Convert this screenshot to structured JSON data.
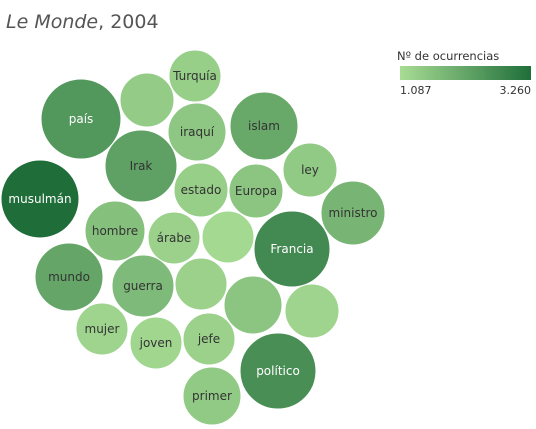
{
  "chart_data": {
    "type": "packed-bubble",
    "title": "Le Monde, 2004",
    "title_parts": {
      "italic": "Le Monde",
      "rest": ", 2004"
    },
    "legend": {
      "title": "Nº de ocurrencias",
      "min": 1087,
      "max": 3260,
      "min_label": "1.087",
      "max_label": "3.260",
      "color_low": "#a8dc94",
      "color_high": "#1f6e3a",
      "placement": "top-right"
    },
    "bubbles": [
      {
        "label": "musulmán",
        "value": 3260
      },
      {
        "label": "Francia",
        "value": 2700
      },
      {
        "label": "político",
        "value": 2600
      },
      {
        "label": "país",
        "value": 2450
      },
      {
        "label": "Irak",
        "value": 2250
      },
      {
        "label": "mundo",
        "value": 2150
      },
      {
        "label": "islam",
        "value": 2100
      },
      {
        "label": "ministro",
        "value": 1850
      },
      {
        "label": "guerra",
        "value": 1750
      },
      {
        "label": "hombre",
        "value": 1650
      },
      {
        "label": "Europa",
        "value": 1550
      },
      {
        "label": "iraquí",
        "value": 1500
      },
      {
        "label": "ley",
        "value": 1450
      },
      {
        "label": "primer",
        "value": 1450
      },
      {
        "label": "estado",
        "value": 1350
      },
      {
        "label": "Turquía",
        "value": 1350
      },
      {
        "label": "árabe",
        "value": 1300
      },
      {
        "label": "jefe",
        "value": 1300
      },
      {
        "label": "mujer",
        "value": 1250
      },
      {
        "label": "joven",
        "value": 1200
      },
      {
        "label": "",
        "value": 1550
      },
      {
        "label": "",
        "value": 1400
      },
      {
        "label": "",
        "value": 1300
      },
      {
        "label": "",
        "value": 1250
      },
      {
        "label": "",
        "value": 1150
      }
    ]
  }
}
